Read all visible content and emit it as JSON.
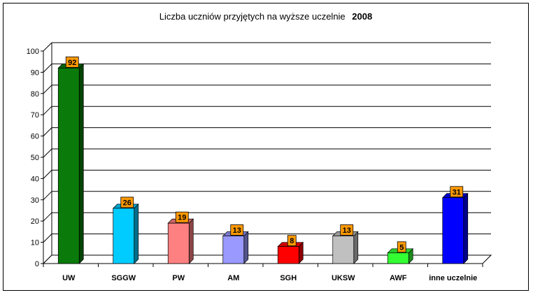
{
  "chart_data": {
    "type": "bar",
    "title": "Liczba uczniów przyjętych na wyższe uczelnie",
    "title_year": "2008",
    "categories": [
      "UW",
      "SGGW",
      "PW",
      "AM",
      "SGH",
      "UKSW",
      "AWF",
      "inne uczelnie"
    ],
    "values": [
      92,
      26,
      19,
      13,
      8,
      13,
      5,
      31
    ],
    "colors": [
      "#0a7a0a",
      "#00ccff",
      "#ff8080",
      "#9999ff",
      "#ff0000",
      "#c0c0c0",
      "#33ff33",
      "#0000ff"
    ],
    "label_bg": "#ff9900",
    "ylim": [
      0,
      100
    ],
    "yticks": [
      0,
      10,
      20,
      30,
      40,
      50,
      60,
      70,
      80,
      90,
      100
    ],
    "grid": true,
    "legend": "none",
    "xlabel": "",
    "ylabel": ""
  }
}
